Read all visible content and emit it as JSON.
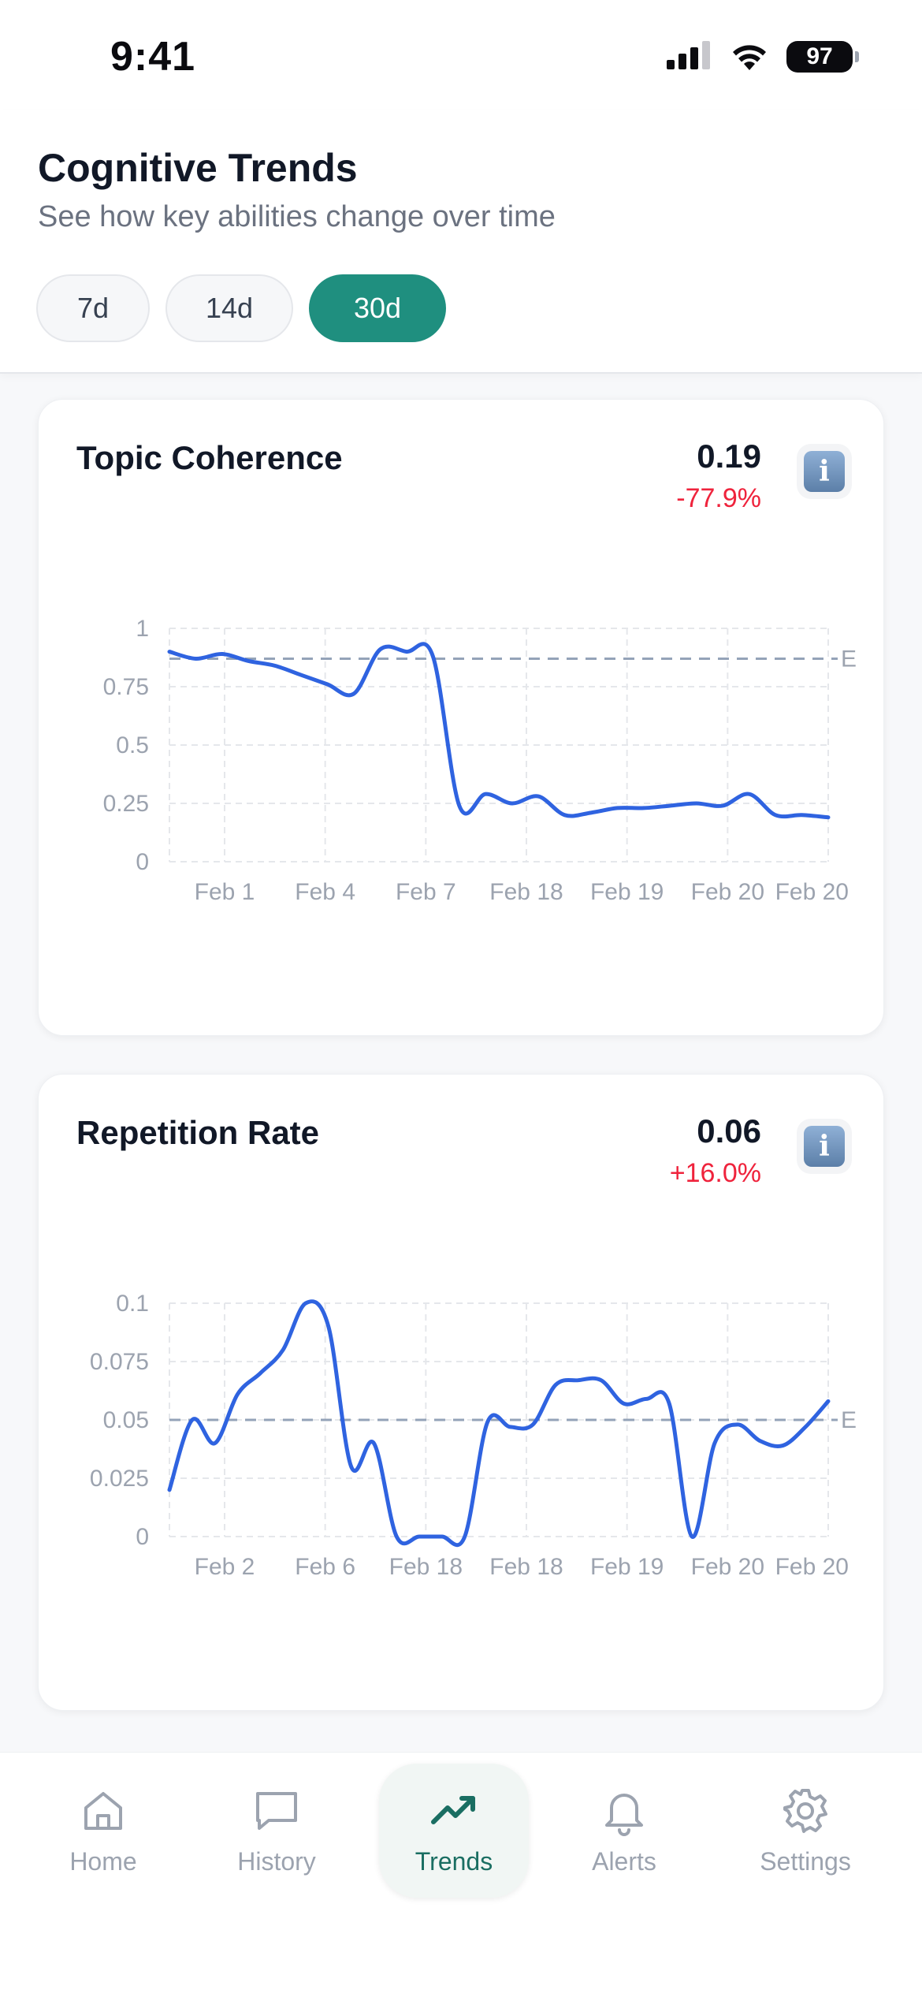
{
  "status": {
    "time": "9:41",
    "battery": "97"
  },
  "header": {
    "title": "Cognitive Trends",
    "subtitle": "See how key abilities change over time",
    "ranges": [
      "7d",
      "14d",
      "30d"
    ],
    "active_range": "30d"
  },
  "colors": {
    "accent": "#1f8f7f",
    "line": "#2f63e0",
    "negative": "#ef233c",
    "baseline": "#94a3b8"
  },
  "cards": [
    {
      "title": "Topic Coherence",
      "value": "0.19",
      "change": "-77.9%",
      "info_icon": "info-icon",
      "chart_data": {
        "type": "line",
        "x_ticks": [
          "Feb 1",
          "Feb 4",
          "Feb 7",
          "Feb 18",
          "Feb 19",
          "Feb 20",
          "Feb 20"
        ],
        "y_ticks": [
          "1",
          "0.75",
          "0.5",
          "0.25",
          "0"
        ],
        "ylim": [
          0,
          1
        ],
        "baseline": 0.87,
        "baseline_label": "E",
        "values": [
          0.9,
          0.87,
          0.89,
          0.86,
          0.84,
          0.8,
          0.76,
          0.72,
          0.91,
          0.9,
          0.88,
          0.24,
          0.29,
          0.25,
          0.28,
          0.2,
          0.21,
          0.23,
          0.23,
          0.24,
          0.25,
          0.24,
          0.29,
          0.2,
          0.2,
          0.19
        ]
      }
    },
    {
      "title": "Repetition Rate",
      "value": "0.06",
      "change": "+16.0%",
      "info_icon": "info-icon",
      "chart_data": {
        "type": "line",
        "x_ticks": [
          "Feb 2",
          "Feb 6",
          "Feb 18",
          "Feb 18",
          "Feb 19",
          "Feb 20",
          "Feb 20"
        ],
        "y_ticks": [
          "0.1",
          "0.075",
          "0.05",
          "0.025",
          "0"
        ],
        "ylim": [
          0,
          0.1
        ],
        "baseline": 0.05,
        "baseline_label": "E",
        "values": [
          0.02,
          0.05,
          0.04,
          0.061,
          0.07,
          0.08,
          0.1,
          0.09,
          0.03,
          0.04,
          0.0,
          0.0,
          0.0,
          0.0,
          0.049,
          0.047,
          0.048,
          0.065,
          0.067,
          0.067,
          0.057,
          0.059,
          0.057,
          0.0,
          0.04,
          0.048,
          0.041,
          0.039,
          0.047,
          0.058
        ]
      }
    }
  ],
  "nav": {
    "items": [
      {
        "label": "Home",
        "icon": "home-icon"
      },
      {
        "label": "History",
        "icon": "chat-icon"
      },
      {
        "label": "Trends",
        "icon": "trend-icon"
      },
      {
        "label": "Alerts",
        "icon": "bell-icon"
      },
      {
        "label": "Settings",
        "icon": "gear-icon"
      }
    ],
    "active": "Trends"
  }
}
